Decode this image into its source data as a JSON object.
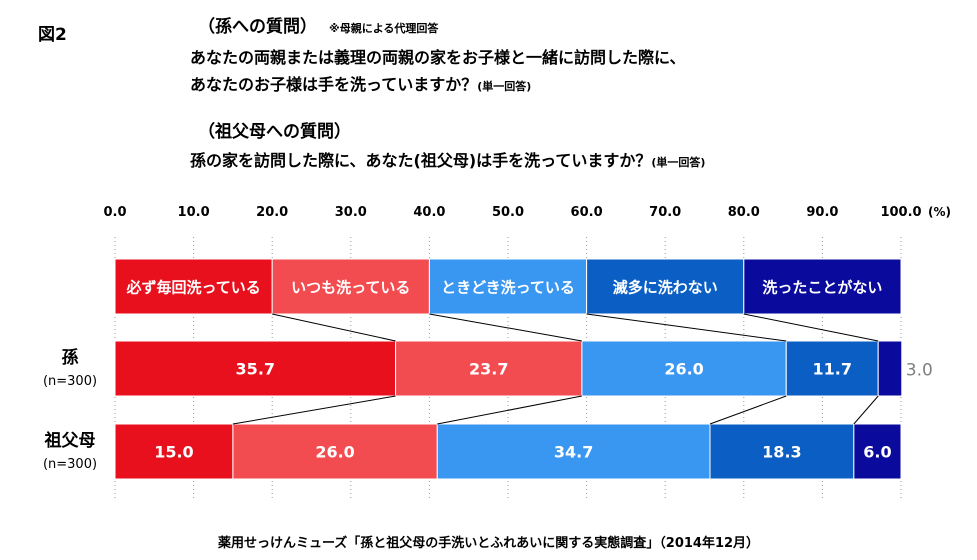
{
  "figure_label": "図2",
  "question_grandchild": {
    "heading": "（孫への質問）",
    "note": "※母親による代理回答",
    "line1": "あなたの両親または義理の両親の家をお子様と一緒に訪問した際に、",
    "line2": "あなたのお子様は手を洗っていますか？",
    "answer_type": "(単一回答)"
  },
  "question_grandparent": {
    "heading": "（祖父母への質問）",
    "line1": "孫の家を訪問した際に、あなた(祖父母)は手を洗っていますか？",
    "answer_type": "(単一回答)"
  },
  "source": "薬用せっけんミューズ「孫と祖父母の手洗いとふれあいに関する実態調査」（2014年12月）",
  "colors": {
    "always": "#e8101c",
    "usually": "#f24b50",
    "sometimes": "#3a97f1",
    "rarely": "#0b5fc4",
    "never": "#0a0a9c"
  },
  "chart_data": {
    "type": "bar",
    "orientation": "horizontal",
    "stacked": true,
    "xlim": [
      0,
      100
    ],
    "x_ticks": [
      "0.0",
      "10.0",
      "20.0",
      "30.0",
      "40.0",
      "50.0",
      "60.0",
      "70.0",
      "80.0",
      "90.0",
      "100.0"
    ],
    "unit": "(%)",
    "categories": [
      {
        "label": "孫",
        "n": "(n=300)"
      },
      {
        "label": "祖父母",
        "n": "(n=300)"
      }
    ],
    "series": [
      {
        "name": "必ず毎回洗っている",
        "values": [
          35.7,
          15.0
        ],
        "labels": [
          "35.7",
          "15.0"
        ]
      },
      {
        "name": "いつも洗っている",
        "values": [
          23.7,
          26.0
        ],
        "labels": [
          "23.7",
          "26.0"
        ]
      },
      {
        "name": "ときどき洗っている",
        "values": [
          26.0,
          34.7
        ],
        "labels": [
          "26.0",
          "34.7"
        ]
      },
      {
        "name": "滅多に洗わない",
        "values": [
          11.7,
          18.3
        ],
        "labels": [
          "11.7",
          "18.3"
        ]
      },
      {
        "name": "洗ったことがない",
        "values": [
          3.0,
          6.0
        ],
        "labels": [
          "3.0",
          "6.0"
        ]
      }
    ],
    "legend_widths": [
      20,
      20,
      20,
      20,
      20
    ],
    "grid": true
  }
}
